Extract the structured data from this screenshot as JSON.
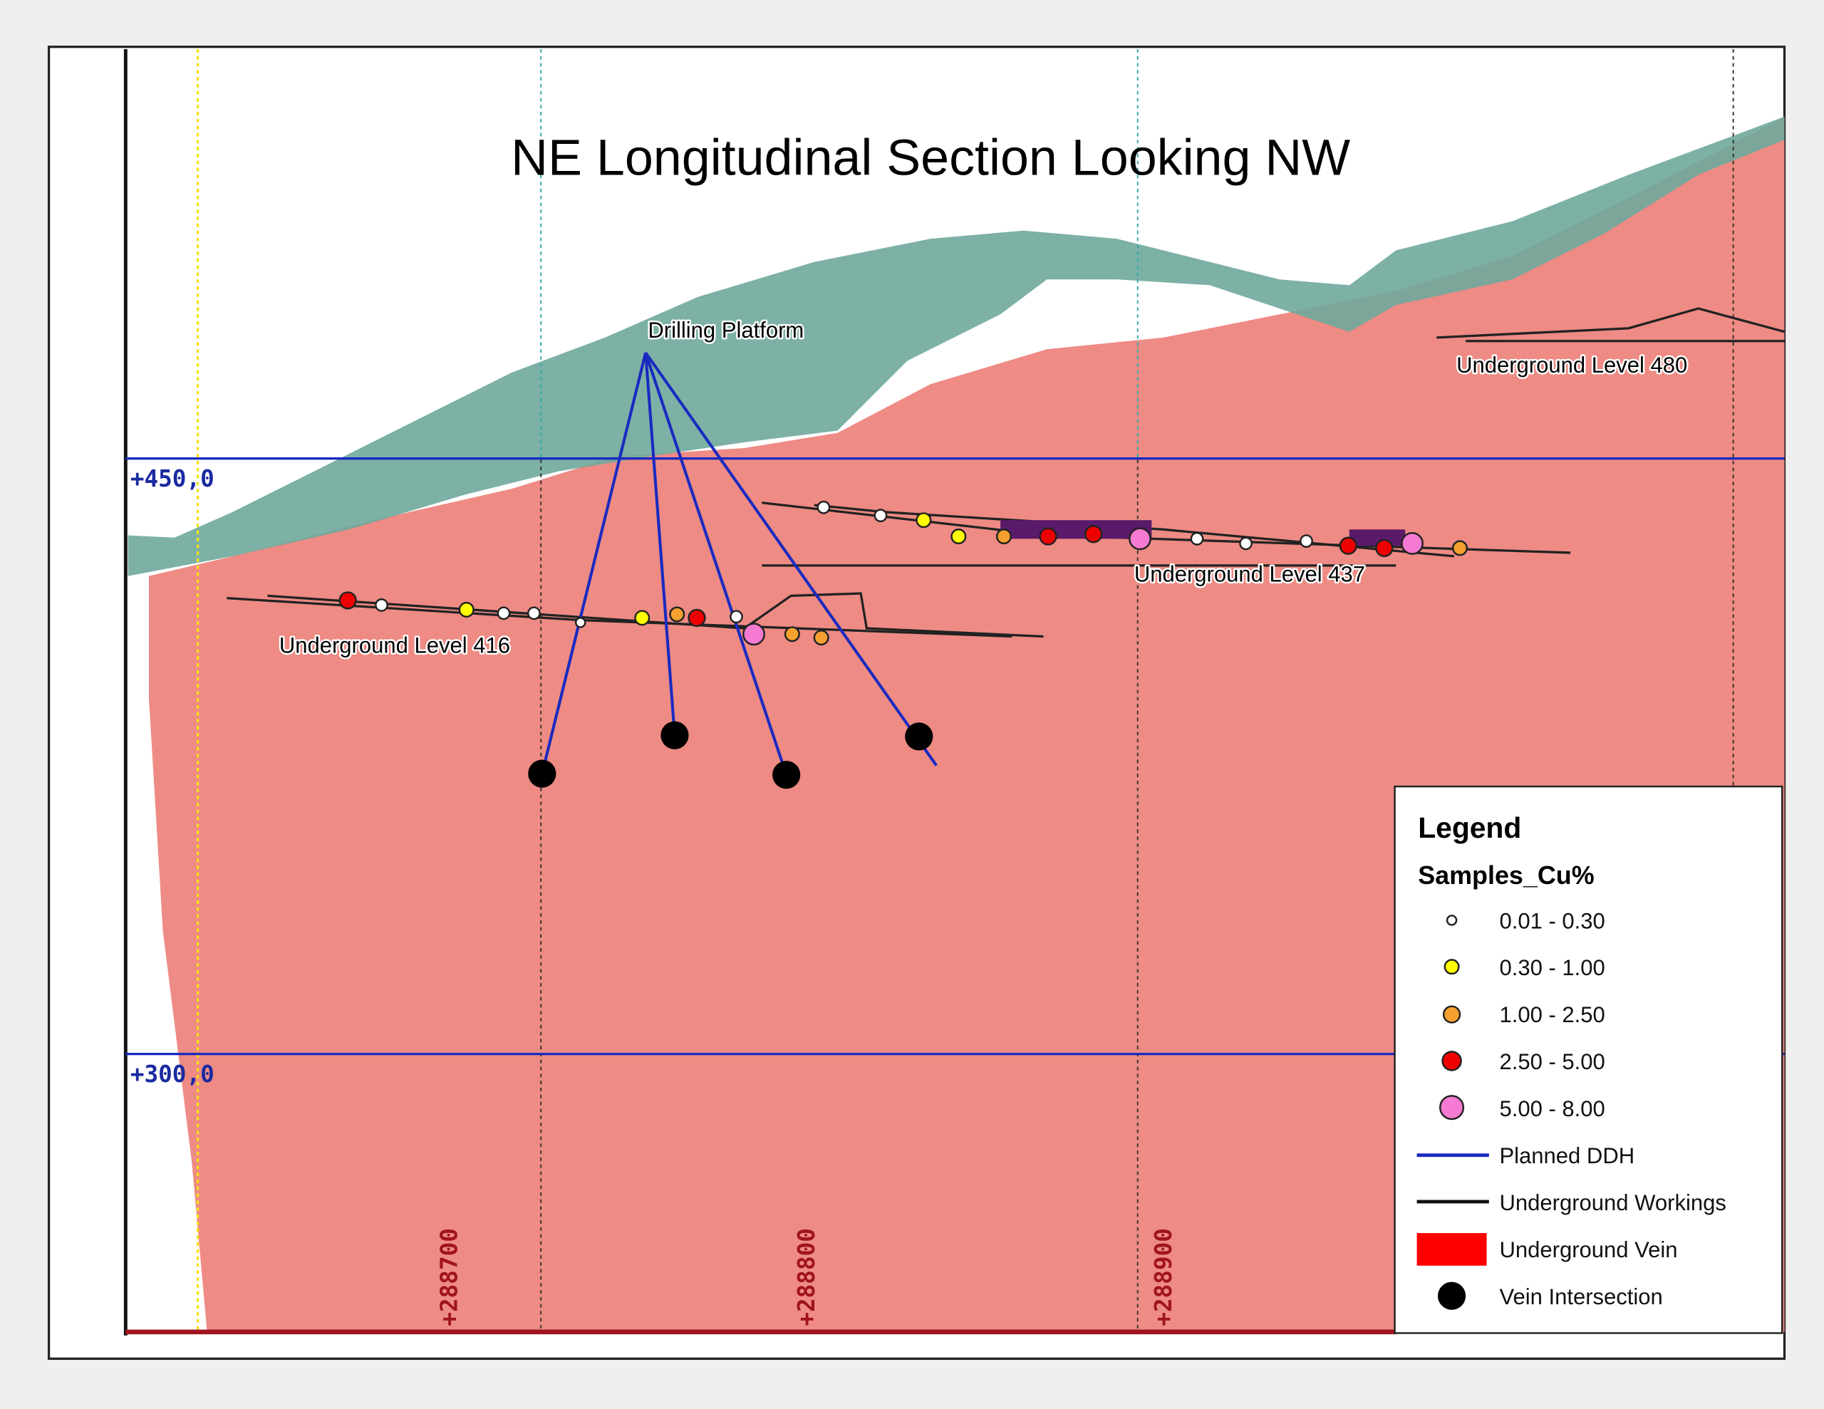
{
  "title": "NE Longitudinal Section Looking NW",
  "labels": {
    "drilling_platform": "Drilling Platform",
    "level_480": "Underground Level 480",
    "level_437": "Underground Level 437",
    "level_416": "Underground Level 416"
  },
  "elevations": [
    "+450,0",
    "+300,0"
  ],
  "eastings": [
    "+288700",
    "+288800",
    "+288900"
  ],
  "legend": {
    "title": "Legend",
    "subtitle": "Samples_Cu%",
    "items": [
      "0.01 - 0.30",
      "0.30 - 1.00",
      "1.00 - 2.50",
      "2.50 - 5.00",
      "5.00 - 8.00",
      "Planned DDH",
      "Underground Workings",
      "Underground Vein",
      "Vein Intersection"
    ]
  }
}
